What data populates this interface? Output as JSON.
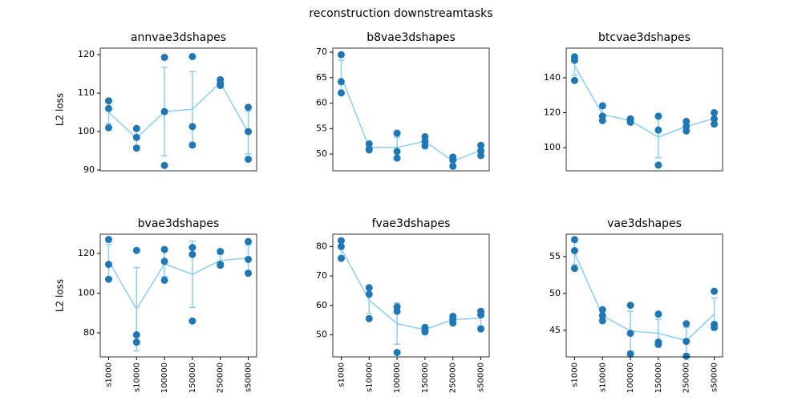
{
  "title": "reconstruction downstreamtasks",
  "chart_data": [
    {
      "type": "errorline",
      "title": "annvae3dshapes",
      "ylabel": "L2 loss",
      "points": [
        [
          108,
          106,
          101
        ],
        [
          100.8,
          98.5,
          95.7
        ],
        [
          119.3,
          91.2,
          105.2
        ],
        [
          119.5,
          101.3,
          96.5
        ],
        [
          113.5,
          112,
          112.5
        ],
        [
          106.3,
          100,
          92.8
        ]
      ],
      "values": [
        105,
        98.3,
        105.2,
        105.8,
        112.7,
        99.7
      ],
      "errors": [
        3,
        2,
        11.5,
        9.8,
        0.7,
        5.5
      ],
      "ylim": [
        89.8,
        121.7
      ],
      "yticks": [
        90,
        100,
        110,
        120
      ],
      "point_color": "#1f77b4",
      "line_color": "#87cefa"
    },
    {
      "type": "errorline",
      "title": "b8vae3dshapes",
      "points": [
        [
          69.5,
          64.2,
          62
        ],
        [
          52,
          51,
          50.8
        ],
        [
          54.1,
          50.5,
          49.2
        ],
        [
          53.4,
          52.5,
          51.6
        ],
        [
          49.4,
          48.8,
          47.6
        ],
        [
          51.7,
          50.6,
          49.7
        ]
      ],
      "values": [
        65.2,
        51.3,
        51.3,
        52.5,
        48.6,
        50.7
      ],
      "errors": [
        3.2,
        0.6,
        2,
        0.8,
        0.8,
        0.8
      ],
      "ylim": [
        46.7,
        70.8
      ],
      "yticks": [
        50,
        55,
        60,
        65,
        70
      ],
      "point_color": "#1f77b4",
      "line_color": "#87cefa"
    },
    {
      "type": "errorline",
      "title": "btcvae3dshapes",
      "points": [
        [
          152,
          150,
          138.5
        ],
        [
          124,
          118,
          115.5
        ],
        [
          116.5,
          115.5,
          114.5
        ],
        [
          118,
          110,
          90
        ],
        [
          115,
          112,
          109.5
        ],
        [
          120,
          116.5,
          113.5
        ]
      ],
      "values": [
        147,
        119,
        115.5,
        106,
        112.2,
        116.7
      ],
      "errors": [
        5.5,
        3.5,
        0.8,
        11.8,
        2.3,
        2.7
      ],
      "ylim": [
        86.7,
        157
      ],
      "yticks": [
        100,
        120,
        140
      ],
      "point_color": "#1f77b4",
      "line_color": "#87cefa"
    },
    {
      "type": "errorline",
      "title": "bvae3dshapes",
      "ylabel": "L2 loss",
      "categories": [
        "s1000",
        "s10000",
        "100000",
        "150000",
        "250000",
        "s50000"
      ],
      "points": [
        [
          127,
          114.5,
          107
        ],
        [
          121.5,
          79,
          75.3
        ],
        [
          122,
          116,
          106.5
        ],
        [
          123,
          119.5,
          86
        ],
        [
          121,
          114.5,
          114
        ],
        [
          126,
          117,
          110
        ]
      ],
      "values": [
        116.2,
        91.9,
        114.8,
        109.5,
        116.5,
        117.7
      ],
      "errors": [
        8.2,
        21,
        6.4,
        16.7,
        3.2,
        6.5
      ],
      "ylim": [
        67.9,
        129.7
      ],
      "yticks": [
        80,
        100,
        120
      ],
      "point_color": "#1f77b4",
      "line_color": "#87cefa"
    },
    {
      "type": "errorline",
      "title": "fvae3dshapes",
      "categories": [
        "s1000",
        "s10000",
        "100000",
        "150000",
        "250000",
        "s50000"
      ],
      "points": [
        [
          82,
          80,
          76
        ],
        [
          66,
          63.8,
          55.5
        ],
        [
          59.5,
          58,
          44
        ],
        [
          52.5,
          51.5,
          51
        ],
        [
          56.3,
          55.3,
          54
        ],
        [
          58,
          56.8,
          52
        ]
      ],
      "values": [
        79.3,
        61.8,
        53.8,
        51.7,
        55.2,
        55.6
      ],
      "errors": [
        2.5,
        4.5,
        7,
        0.6,
        1,
        2.6
      ],
      "ylim": [
        42.5,
        84.2
      ],
      "yticks": [
        50,
        60,
        70,
        80
      ],
      "point_color": "#1f77b4",
      "line_color": "#87cefa"
    },
    {
      "type": "errorline",
      "title": "vae3dshapes",
      "categories": [
        "s1000",
        "s10000",
        "100000",
        "150000",
        "250000",
        "s50000"
      ],
      "points": [
        [
          57.3,
          55.8,
          53.4
        ],
        [
          47.8,
          47,
          46.3
        ],
        [
          48.4,
          44.6,
          41.8
        ],
        [
          47.2,
          43.4,
          43.1
        ],
        [
          45.9,
          43.5,
          41.5
        ],
        [
          50.3,
          45.8,
          45.4
        ]
      ],
      "values": [
        55.5,
        47,
        44.9,
        44.6,
        43.6,
        47.2
      ],
      "errors": [
        1.6,
        0.6,
        2.7,
        1.9,
        1.8,
        2.2
      ],
      "ylim": [
        41.4,
        58.04
      ],
      "yticks": [
        45,
        50,
        55
      ],
      "point_color": "#1f77b4",
      "line_color": "#87cefa"
    }
  ]
}
